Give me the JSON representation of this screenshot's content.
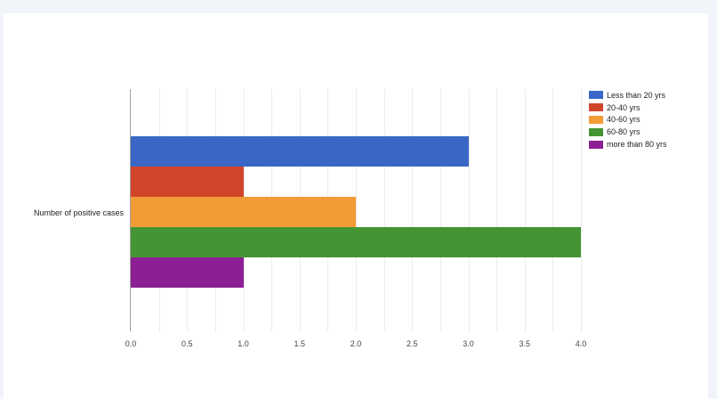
{
  "chart_data": {
    "type": "bar",
    "orientation": "horizontal",
    "title": "",
    "xlabel": "",
    "ylabel": "",
    "categories": [
      "Number of positive cases"
    ],
    "series": [
      {
        "name": "Less than 20 yrs",
        "values": [
          3
        ],
        "color": "#3a67c6"
      },
      {
        "name": "20-40 yrs",
        "values": [
          1
        ],
        "color": "#d1452a"
      },
      {
        "name": "40-60 yrs",
        "values": [
          2
        ],
        "color": "#f29c38"
      },
      {
        "name": "60-80 yrs",
        "values": [
          4
        ],
        "color": "#459433"
      },
      {
        "name": "more than 80 yrs",
        "values": [
          1
        ],
        "color": "#8b1f93"
      }
    ],
    "xlim": [
      0,
      4
    ],
    "x_ticks": [
      "0.0",
      "0.5",
      "1.0",
      "1.5",
      "2.0",
      "2.5",
      "3.0",
      "3.5",
      "4.0"
    ],
    "grid": true,
    "legend_position": "right"
  },
  "colors": {
    "page_background": "#f1f5fa",
    "card_background": "#ffffff"
  }
}
